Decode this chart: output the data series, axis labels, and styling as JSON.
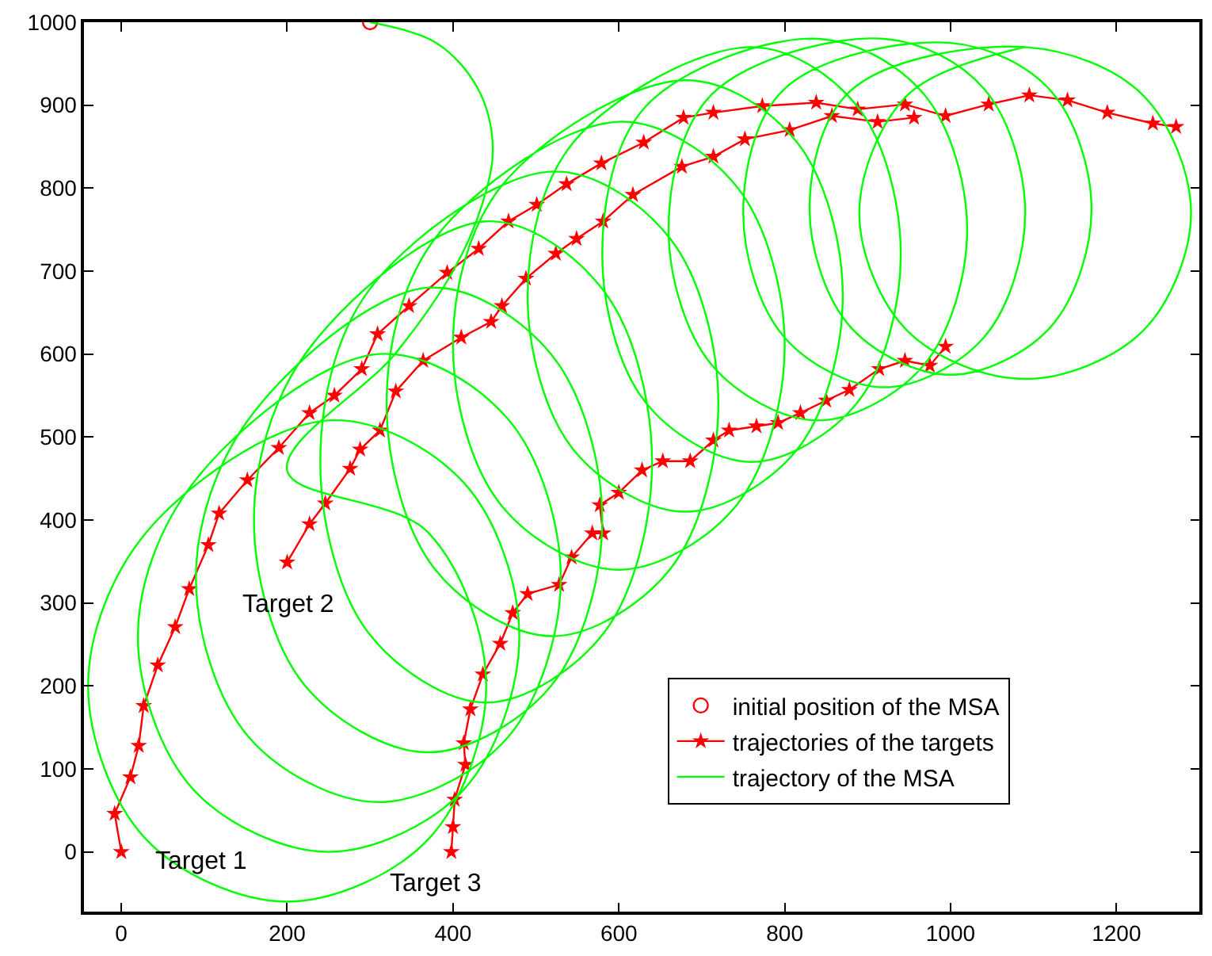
{
  "chart_data": {
    "type": "line",
    "xlim": [
      -45,
      1300
    ],
    "ylim": [
      -72,
      1000
    ],
    "xticks": [
      0,
      200,
      400,
      600,
      800,
      1000,
      1200
    ],
    "yticks": [
      0,
      100,
      200,
      300,
      400,
      500,
      600,
      700,
      800,
      900,
      1000
    ],
    "legend": "bottom right",
    "annotations": [
      {
        "text": "Target 1",
        "x": 97,
        "y": -12
      },
      "Target 2",
      "Target 3"
    ],
    "series": [
      {
        "name": "initial position of the MSA",
        "type": "scatter",
        "marker": "circle",
        "color": "#ff0000",
        "x": [
          300
        ],
        "values": [
          1000
        ]
      },
      {
        "name": "trajectories of the targets",
        "marker": "star",
        "color": "#ff0000",
        "x": [
          0,
          -8,
          11,
          21,
          27,
          44,
          65,
          82,
          105,
          118,
          152,
          190,
          227,
          257,
          290,
          309,
          347,
          393,
          431,
          467,
          501,
          537,
          579,
          630,
          678,
          714,
          773,
          838,
          888,
          945,
          994,
          1046,
          1095,
          1141,
          1189,
          1244,
          1272,
          null,
          200,
          227,
          246,
          276,
          288,
          312,
          331,
          364,
          410,
          446,
          459,
          488,
          524,
          549,
          581,
          617,
          676,
          714,
          752,
          806,
          857,
          912,
          956,
          null,
          398,
          400,
          402,
          415,
          413,
          421,
          436,
          457,
          472,
          490,
          528,
          543,
          568,
          581,
          577,
          600,
          628,
          653,
          686,
          714,
          733,
          766,
          792,
          819,
          850,
          878,
          914,
          945,
          975,
          994
        ],
        "values": [
          0,
          46,
          90,
          128,
          176,
          225,
          271,
          317,
          370,
          408,
          448,
          487,
          529,
          550,
          582,
          624,
          658,
          698,
          727,
          760,
          780,
          805,
          830,
          855,
          885,
          891,
          899,
          903,
          895,
          901,
          887,
          901,
          912,
          906,
          891,
          878,
          874,
          null,
          349,
          395,
          420,
          462,
          485,
          508,
          555,
          592,
          620,
          639,
          658,
          691,
          721,
          739,
          760,
          792,
          826,
          838,
          859,
          870,
          887,
          880,
          885,
          null,
          0,
          30,
          63,
          105,
          131,
          172,
          214,
          251,
          288,
          311,
          322,
          355,
          384,
          384,
          418,
          433,
          460,
          471,
          471,
          496,
          508,
          513,
          517,
          529,
          544,
          557,
          582,
          592,
          586,
          609
        ]
      },
      {
        "name": "trajectory of the MSA",
        "marker": "none",
        "color": "#00ff00",
        "x": [
          300,
          380,
          430,
          448,
          435,
          400,
          330,
          200,
          370,
          440,
          370,
          200,
          30,
          -40,
          30,
          250,
          413,
          480,
          413,
          250,
          87,
          20,
          87,
          310,
          466,
          530,
          466,
          310,
          154,
          90,
          154,
          370,
          519,
          580,
          519,
          370,
          221,
          160,
          221,
          440,
          582,
          640,
          582,
          440,
          298,
          240,
          298,
          520,
          662,
          720,
          662,
          520,
          378,
          320,
          378,
          600,
          742,
          800,
          742,
          600,
          458,
          400,
          458,
          680,
          815,
          870,
          815,
          680,
          545,
          490,
          545,
          760,
          888,
          940,
          888,
          760,
          632,
          580,
          632,
          840,
          968,
          1020,
          968,
          840,
          712,
          660,
          712,
          920,
          1041,
          1090,
          1041,
          920,
          799,
          750,
          799,
          1000,
          1121,
          1170,
          1121,
          1000,
          879,
          830,
          879,
          1090,
          1232,
          1290,
          1232,
          1090,
          948,
          890,
          948,
          1090
        ],
        "values": [
          1000,
          975,
          920,
          850,
          780,
          700,
          600,
          460,
          385,
          200,
          15,
          -60,
          15,
          200,
          385,
          520,
          445,
          260,
          75,
          0,
          75,
          260,
          445,
          600,
          522,
          330,
          138,
          60,
          138,
          330,
          522,
          680,
          599,
          400,
          201,
          120,
          201,
          400,
          599,
          760,
          676,
          470,
          264,
          180,
          264,
          470,
          676,
          820,
          739,
          540,
          341,
          260,
          341,
          540,
          739,
          880,
          802,
          610,
          418,
          340,
          418,
          610,
          802,
          930,
          855,
          670,
          485,
          410,
          485,
          670,
          855,
          970,
          898,
          720,
          542,
          470,
          542,
          720,
          898,
          980,
          913,
          750,
          587,
          520,
          587,
          750,
          913,
          980,
          919,
          770,
          621,
          560,
          621,
          770,
          919,
          975,
          917,
          775,
          633,
          575,
          633,
          775,
          917,
          970,
          912,
          770,
          628,
          570,
          628,
          770,
          912,
          970
        ]
      }
    ]
  }
}
